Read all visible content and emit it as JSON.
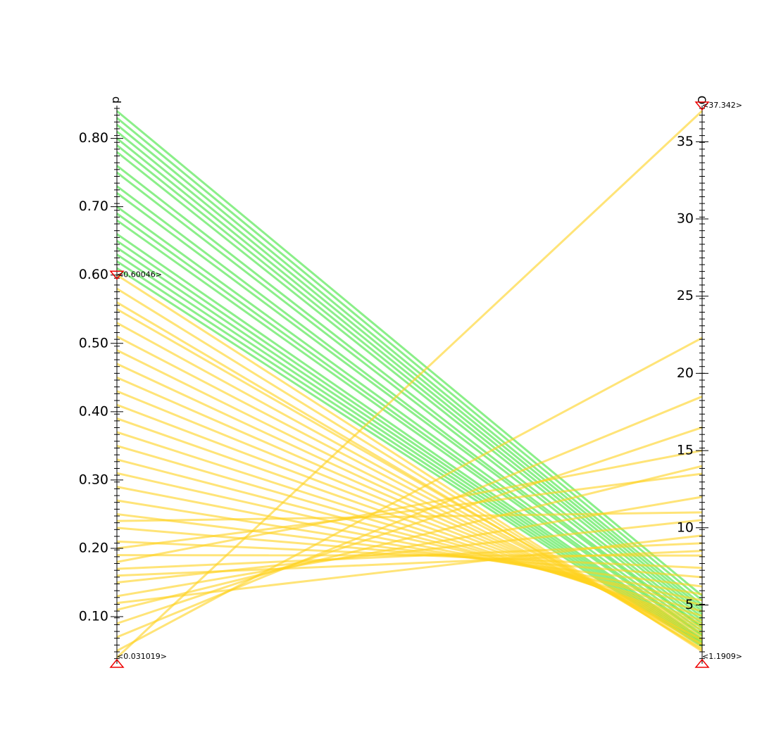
{
  "chart_data": {
    "type": "parallel-coordinates",
    "line_colors": {
      "selected": "#ffd21e",
      "unselected": "#3ee53a"
    },
    "dimensions": [
      {
        "name": "d",
        "lim": [
          0.031019,
          0.848
        ],
        "ticks": [
          {
            "value": 0.1,
            "label": "0.10"
          },
          {
            "value": 0.2,
            "label": "0.20"
          },
          {
            "value": 0.3,
            "label": "0.30"
          },
          {
            "value": 0.4,
            "label": "0.40"
          },
          {
            "value": 0.5,
            "label": "0.50"
          },
          {
            "value": 0.6,
            "label": "0.60"
          },
          {
            "value": 0.7,
            "label": "0.70"
          },
          {
            "value": 0.8,
            "label": "0.80"
          }
        ],
        "range_labels": [
          "<0.031019>",
          "<0.60046>"
        ],
        "brush": [
          0.031019,
          0.60046
        ],
        "values": [
          0.84,
          0.83,
          0.82,
          0.81,
          0.8,
          0.79,
          0.78,
          0.76,
          0.75,
          0.73,
          0.72,
          0.7,
          0.69,
          0.68,
          0.66,
          0.65,
          0.64,
          0.63,
          0.62,
          0.61,
          0.6,
          0.58,
          0.56,
          0.55,
          0.53,
          0.51,
          0.49,
          0.47,
          0.45,
          0.43,
          0.41,
          0.39,
          0.37,
          0.35,
          0.33,
          0.31,
          0.29,
          0.27,
          0.25,
          0.23,
          0.21,
          0.19,
          0.17,
          0.15,
          0.13,
          0.11,
          0.09,
          0.07,
          0.05,
          0.04,
          0.24,
          0.2,
          0.18,
          0.16,
          0.12
        ]
      },
      {
        "name": "O",
        "lim": [
          1.1909,
          37.342
        ],
        "ticks": [
          5,
          10,
          15,
          20,
          25,
          30,
          35
        ],
        "range_labels": [
          "<1.1909>",
          "<37.342>"
        ],
        "brush": [
          1.1909,
          37.342
        ],
        "values": [
          5.6,
          5.3,
          5.0,
          4.8,
          4.6,
          4.4,
          4.2,
          4.0,
          3.8,
          3.6,
          3.5,
          3.3,
          3.1,
          3.0,
          2.8,
          2.7,
          2.6,
          2.5,
          2.4,
          2.3,
          2.0,
          2.1,
          2.2,
          2.4,
          2.5,
          2.7,
          2.8,
          3.0,
          3.2,
          3.4,
          3.6,
          3.8,
          4.0,
          4.3,
          4.6,
          5.0,
          5.3,
          5.7,
          6.2,
          6.8,
          7.4,
          8.2,
          9.0,
          10.5,
          12.0,
          14.0,
          16.5,
          18.5,
          22.3,
          37.0,
          11.0,
          13.5,
          15.0,
          8.5,
          9.5
        ]
      }
    ]
  }
}
